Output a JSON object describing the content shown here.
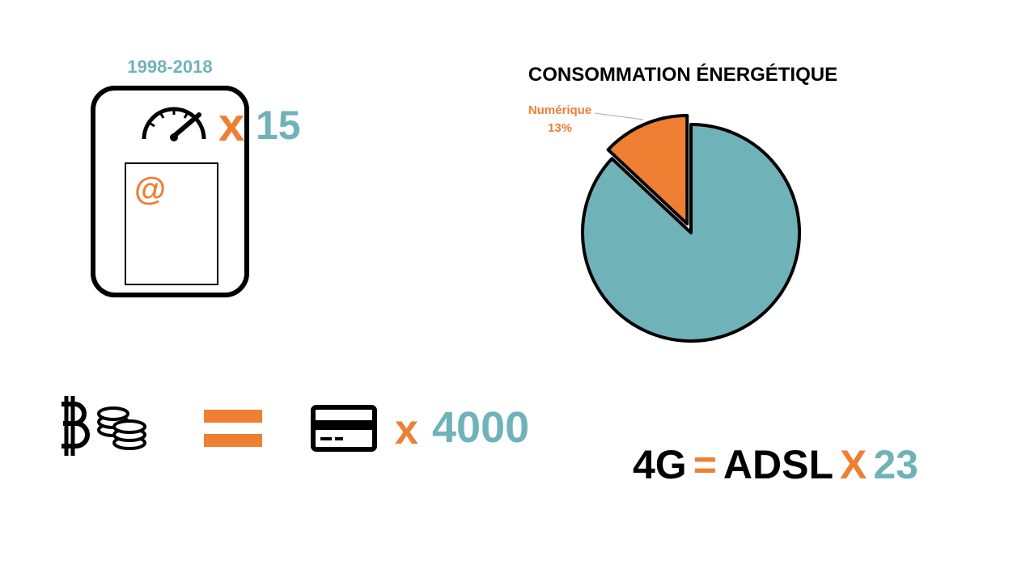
{
  "speed": {
    "period": "1998-2018",
    "at_symbol": "@",
    "times": "x",
    "multiplier": "15",
    "icon": "speedometer-icon"
  },
  "chart_data": {
    "type": "pie",
    "title": "CONSOMMATION ÉNERGÉTIQUE",
    "slices": [
      {
        "name": "Numérique",
        "label": "13%",
        "value": 13,
        "color": "#ee7f33",
        "exploded": true
      },
      {
        "value": 87,
        "color": "#6fb3b9"
      }
    ]
  },
  "crypto": {
    "icons": [
      "bitcoin-icon",
      "coins-icon",
      "credit-card-icon"
    ],
    "equals": "=",
    "times": "x",
    "multiplier": "4000"
  },
  "network": {
    "left": "4G",
    "equals": "=",
    "right": "ADSL",
    "times": "X",
    "multiplier": "23"
  },
  "colors": {
    "teal": "#6fb3b9",
    "orange": "#ee7f33",
    "black": "#000000"
  }
}
